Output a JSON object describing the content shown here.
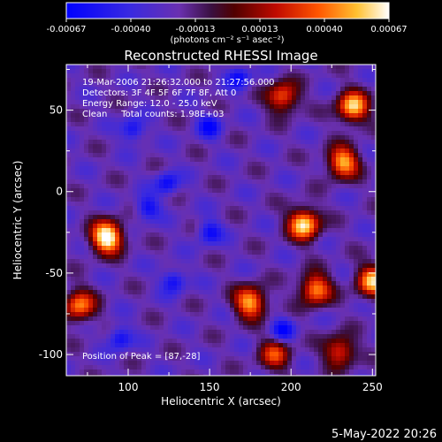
{
  "colorbar": {
    "ticks": [
      "-0.00067",
      "-0.00040",
      "-0.00013",
      "0.00013",
      "0.00040",
      "0.00067"
    ],
    "unit_label": "(photons cm⁻² s⁻¹ asec⁻²)",
    "colors": [
      "#0000ff",
      "#4a20c8",
      "#7a3aa0",
      "#5a0a0a",
      "#c01000",
      "#ff5000",
      "#ffb000",
      "#ffff80",
      "#ffffff"
    ]
  },
  "info": {
    "line1": "19-Mar-2006 21:26:32.000 to 21:27:56.000",
    "line2": "Detectors: 3F 4F 5F 6F 7F 8F, Att 0",
    "line3": "Energy Range: 12.0 - 25.0 keV",
    "line4": "Clean     Total counts: 1.98E+03",
    "peak": "Position of Peak = [87,-28]"
  },
  "footer": {
    "date": "5-May-2022 20:26"
  },
  "chart_data": {
    "type": "heatmap",
    "title": "Reconstructed RHESSI Image",
    "xlabel": "Heliocentric X (arcsec)",
    "ylabel": "Heliocentric Y (arcsec)",
    "xlim": [
      62,
      252
    ],
    "ylim": [
      -113,
      78
    ],
    "xticks": [
      100,
      150,
      200,
      250
    ],
    "yticks": [
      -100,
      -50,
      0,
      50
    ],
    "value_range": [
      -0.00067,
      0.00067
    ],
    "peak_position": [
      87,
      -28
    ],
    "bright_sources": [
      {
        "x": 87,
        "y": -28,
        "level": 1.0
      },
      {
        "x": 208,
        "y": -20,
        "level": 0.85
      },
      {
        "x": 238,
        "y": 52,
        "level": 0.8
      },
      {
        "x": 232,
        "y": 18,
        "level": 0.75
      },
      {
        "x": 175,
        "y": -68,
        "level": 0.75
      },
      {
        "x": 215,
        "y": -60,
        "level": 0.7
      },
      {
        "x": 250,
        "y": -55,
        "level": 0.75
      },
      {
        "x": 70,
        "y": -70,
        "level": 0.65
      },
      {
        "x": 195,
        "y": 58,
        "level": 0.6
      },
      {
        "x": 230,
        "y": -98,
        "level": 0.55
      },
      {
        "x": 190,
        "y": -100,
        "level": 0.5
      }
    ],
    "dark_sources": [
      {
        "x": 103,
        "y": 38
      },
      {
        "x": 124,
        "y": 5
      },
      {
        "x": 150,
        "y": -25
      },
      {
        "x": 128,
        "y": -55
      },
      {
        "x": 95,
        "y": -90
      },
      {
        "x": 150,
        "y": 40
      },
      {
        "x": 195,
        "y": -85
      },
      {
        "x": 168,
        "y": 70
      },
      {
        "x": 112,
        "y": -10
      }
    ]
  }
}
